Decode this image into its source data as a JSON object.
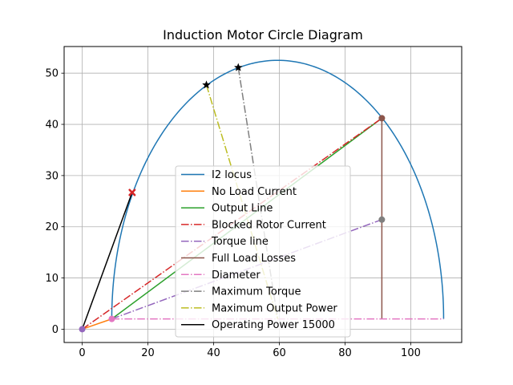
{
  "chart_data": {
    "type": "line",
    "title": "Induction Motor Circle Diagram",
    "xlabel": "",
    "ylabel": "",
    "xlim": [
      -5.5,
      115.5
    ],
    "ylim": [
      -2.6,
      55.2
    ],
    "x_ticks": [
      0,
      20,
      40,
      60,
      80,
      100
    ],
    "y_ticks": [
      0,
      10,
      20,
      30,
      40,
      50
    ],
    "grid": true,
    "legend_position": "lower-center",
    "circle": {
      "center": [
        59.5,
        2.0
      ],
      "radius": 50.5
    },
    "series": [
      {
        "name": "I2 locus",
        "kind": "arc",
        "color": "#1f77b4",
        "dash": "solid"
      },
      {
        "name": "No Load Current",
        "x": [
          0,
          9
        ],
        "y": [
          0,
          2
        ],
        "color": "#ff7f0e",
        "dash": "solid"
      },
      {
        "name": "Output Line",
        "x": [
          9,
          91.2
        ],
        "y": [
          2,
          41.2
        ],
        "color": "#2ca02c",
        "dash": "solid"
      },
      {
        "name": "Blocked Rotor Current",
        "x": [
          0,
          91.2
        ],
        "y": [
          0,
          41.2
        ],
        "color": "#d62728",
        "dash": "dashdot"
      },
      {
        "name": "Torque line",
        "x": [
          9,
          91.2
        ],
        "y": [
          2,
          21.4
        ],
        "color": "#9467bd",
        "dash": "dashdot"
      },
      {
        "name": "Full Load Losses",
        "x": [
          91.2,
          91.2
        ],
        "y": [
          2,
          41.2
        ],
        "color": "#8c564b",
        "dash": "solid"
      },
      {
        "name": "Diameter",
        "x": [
          9,
          110
        ],
        "y": [
          2,
          2
        ],
        "color": "#e377c2",
        "dash": "dashdot"
      },
      {
        "name": "Maximum Torque",
        "x": [
          47.5,
          59.5
        ],
        "y": [
          51.1,
          2
        ],
        "color": "#7f7f7f",
        "dash": "dashdot"
      },
      {
        "name": "Maximum Output Power",
        "x": [
          37.8,
          59.5
        ],
        "y": [
          47.7,
          2
        ],
        "color": "#bcbd22",
        "dash": "dashdot"
      },
      {
        "name": "Operating Power 15000",
        "x": [
          0,
          15.2
        ],
        "y": [
          0,
          26.7
        ],
        "color": "#000000",
        "dash": "solid"
      }
    ],
    "markers": [
      {
        "name": "no-load-point",
        "x": 0,
        "y": 0,
        "shape": "circle",
        "color": "#9467bd"
      },
      {
        "name": "no-load-end-point",
        "x": 9,
        "y": 2,
        "shape": "circle",
        "color": "#e377c2"
      },
      {
        "name": "full-load-top-point",
        "x": 91.2,
        "y": 41.2,
        "shape": "circle",
        "color": "#8c564b"
      },
      {
        "name": "torque-point",
        "x": 91.2,
        "y": 21.4,
        "shape": "circle",
        "color": "#7f7f7f"
      },
      {
        "name": "max-output-point",
        "x": 37.8,
        "y": 47.7,
        "shape": "star",
        "color": "#000000"
      },
      {
        "name": "max-torque-point",
        "x": 47.5,
        "y": 51.1,
        "shape": "star",
        "color": "#000000"
      },
      {
        "name": "operating-point",
        "x": 15.2,
        "y": 26.7,
        "shape": "x",
        "color": "#d62728"
      }
    ]
  }
}
